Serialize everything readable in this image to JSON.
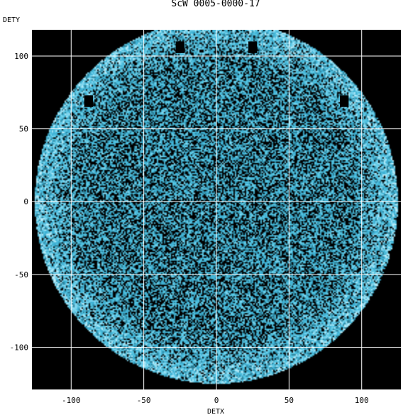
{
  "chart_data": {
    "type": "heatmap",
    "title": "ScW 0005-0000-17",
    "xlabel": "DETX",
    "ylabel": "DETY",
    "xlim": [
      -127,
      127
    ],
    "ylim": [
      -129,
      118
    ],
    "x_ticks": [
      -100,
      -50,
      0,
      50,
      100
    ],
    "y_ticks": [
      100,
      50,
      0,
      -50,
      -100
    ],
    "x_tick_labels": [
      "-100",
      "-50",
      "0",
      "50",
      "100"
    ],
    "y_tick_labels": [
      "100",
      "50",
      "0",
      "-50",
      "-100"
    ],
    "grid": true,
    "detector_shape": "circle",
    "detector_radius": 125,
    "masked_blocks": [
      {
        "x": -25,
        "y": 106
      },
      {
        "x": 25,
        "y": 106
      },
      {
        "x": -88,
        "y": 69
      },
      {
        "x": 88,
        "y": 69
      }
    ],
    "colors": {
      "background": "#000000",
      "counts": [
        "#000000",
        "#2b7c93",
        "#3fb1d4",
        "#58c7e3",
        "#7fd6ef",
        "#b8ecf9"
      ],
      "grid": "#ffffff"
    }
  }
}
